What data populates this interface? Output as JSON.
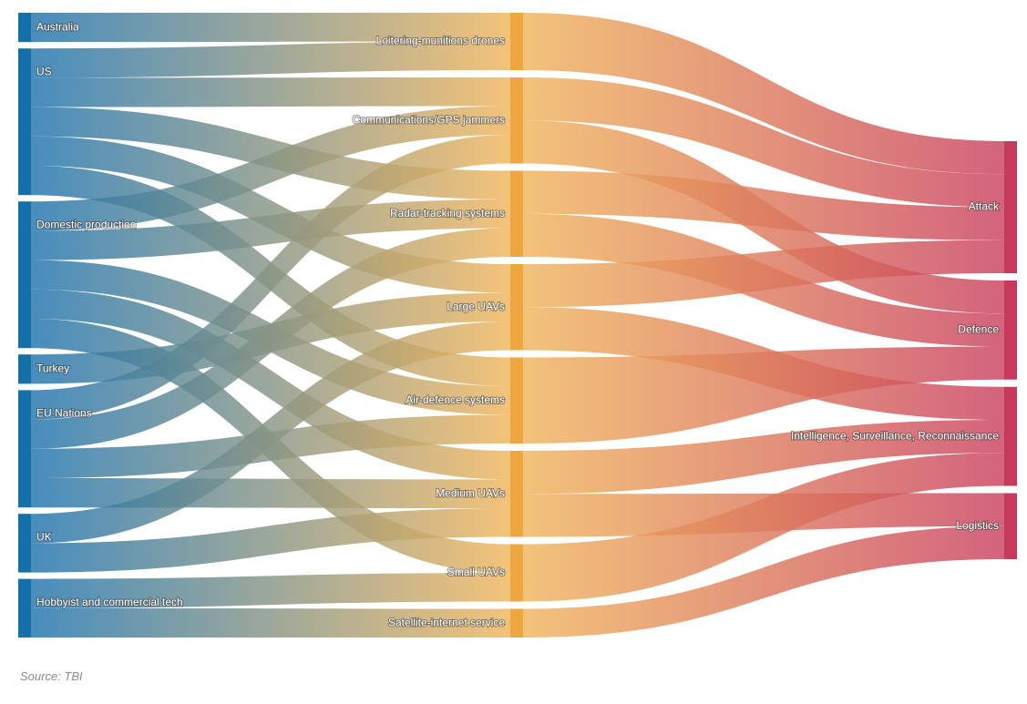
{
  "colors": {
    "left": "#1f74ae",
    "middle": "#f0b55c",
    "right": "#c9415f",
    "left_node": "#1670a8",
    "middle_node": "#eda640",
    "right_node": "#c73a5c"
  },
  "sources": [
    {
      "id": "australia",
      "label": "Australia"
    },
    {
      "id": "us",
      "label": "US"
    },
    {
      "id": "domestic",
      "label": "Domestic production"
    },
    {
      "id": "turkey",
      "label": "Turkey"
    },
    {
      "id": "eu",
      "label": "EU Nations"
    },
    {
      "id": "uk",
      "label": "UK"
    },
    {
      "id": "hobbyist",
      "label": "Hobbyist and commercial tech"
    }
  ],
  "systems": [
    {
      "id": "loitering",
      "label": "Loitering-munitions drones"
    },
    {
      "id": "jammers",
      "label": "Communications/GPS jammers"
    },
    {
      "id": "radar",
      "label": "Radar-tracking systems"
    },
    {
      "id": "large",
      "label": "Large UAVs"
    },
    {
      "id": "airdef",
      "label": "Air-defence systems"
    },
    {
      "id": "medium",
      "label": "Medium UAVs"
    },
    {
      "id": "small",
      "label": "Small UAVs"
    },
    {
      "id": "satellite",
      "label": "Satellite-internet service"
    }
  ],
  "uses": [
    {
      "id": "attack",
      "label": "Attack"
    },
    {
      "id": "defence",
      "label": "Defence"
    },
    {
      "id": "isr",
      "label": "Intelligence, Surveillance, Reconnaissance"
    },
    {
      "id": "logistics",
      "label": "Logistics"
    }
  ],
  "links_source_system": [
    {
      "from": "australia",
      "to": "loitering",
      "value": 1
    },
    {
      "from": "us",
      "to": "loitering",
      "value": 1
    },
    {
      "from": "us",
      "to": "jammers",
      "value": 1
    },
    {
      "from": "us",
      "to": "radar",
      "value": 1
    },
    {
      "from": "us",
      "to": "large",
      "value": 1
    },
    {
      "from": "us",
      "to": "airdef",
      "value": 1
    },
    {
      "from": "domestic",
      "to": "jammers",
      "value": 1
    },
    {
      "from": "domestic",
      "to": "radar",
      "value": 1
    },
    {
      "from": "domestic",
      "to": "airdef",
      "value": 1
    },
    {
      "from": "domestic",
      "to": "medium",
      "value": 1
    },
    {
      "from": "domestic",
      "to": "small",
      "value": 1
    },
    {
      "from": "turkey",
      "to": "large",
      "value": 1
    },
    {
      "from": "eu",
      "to": "jammers",
      "value": 1
    },
    {
      "from": "eu",
      "to": "radar",
      "value": 1
    },
    {
      "from": "eu",
      "to": "airdef",
      "value": 1
    },
    {
      "from": "eu",
      "to": "medium",
      "value": 1
    },
    {
      "from": "uk",
      "to": "large",
      "value": 1
    },
    {
      "from": "uk",
      "to": "medium",
      "value": 1
    },
    {
      "from": "hobbyist",
      "to": "small",
      "value": 1
    },
    {
      "from": "hobbyist",
      "to": "satellite",
      "value": 1
    }
  ],
  "links_system_use": [
    {
      "from": "loitering",
      "to": "attack",
      "value": 1
    },
    {
      "from": "jammers",
      "to": "attack",
      "value": 1
    },
    {
      "from": "jammers",
      "to": "defence",
      "value": 1
    },
    {
      "from": "radar",
      "to": "attack",
      "value": 1
    },
    {
      "from": "radar",
      "to": "defence",
      "value": 1
    },
    {
      "from": "large",
      "to": "attack",
      "value": 1
    },
    {
      "from": "large",
      "to": "isr",
      "value": 1
    },
    {
      "from": "airdef",
      "to": "defence",
      "value": 1
    },
    {
      "from": "medium",
      "to": "isr",
      "value": 1
    },
    {
      "from": "medium",
      "to": "logistics",
      "value": 1
    },
    {
      "from": "small",
      "to": "isr",
      "value": 1
    },
    {
      "from": "satellite",
      "to": "logistics",
      "value": 1
    }
  ],
  "source_note": "Source: TBI"
}
